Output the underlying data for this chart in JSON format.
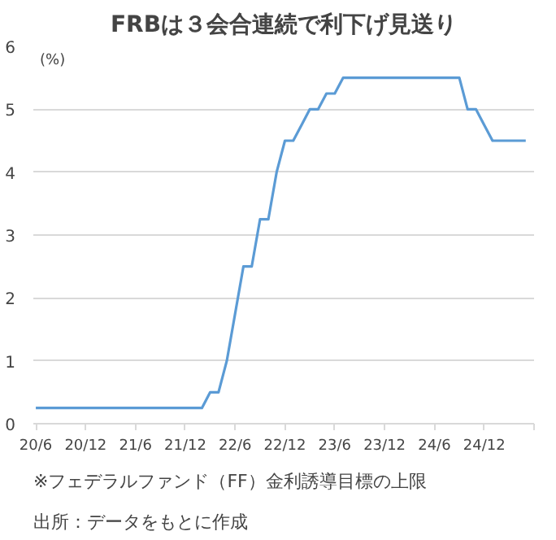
{
  "chart_data": {
    "type": "line",
    "title": "FRBは３会合連続で利下げ見送り",
    "ylabel": "(%)",
    "categories": [
      "20/6",
      null,
      null,
      null,
      null,
      null,
      "20/12",
      null,
      null,
      null,
      null,
      null,
      "21/6",
      null,
      null,
      null,
      null,
      null,
      "21/12",
      null,
      null,
      null,
      null,
      null,
      "22/6",
      null,
      null,
      null,
      null,
      null,
      "22/12",
      null,
      null,
      null,
      null,
      null,
      "23/6",
      null,
      null,
      null,
      null,
      null,
      "23/12",
      null,
      null,
      null,
      null,
      null,
      "24/6",
      null,
      null,
      null,
      null,
      null,
      "24/12",
      null,
      null,
      null,
      null,
      null
    ],
    "series": [
      {
        "color": "#5b9bd5",
        "values": [
          0.25,
          0.25,
          0.25,
          0.25,
          0.25,
          0.25,
          0.25,
          0.25,
          0.25,
          0.25,
          0.25,
          0.25,
          0.25,
          0.25,
          0.25,
          0.25,
          0.25,
          0.25,
          0.25,
          0.25,
          0.25,
          0.5,
          0.5,
          1.0,
          1.75,
          2.5,
          2.5,
          3.25,
          3.25,
          4.0,
          4.5,
          4.5,
          4.75,
          5.0,
          5.0,
          5.25,
          5.25,
          5.5,
          5.5,
          5.5,
          5.5,
          5.5,
          5.5,
          5.5,
          5.5,
          5.5,
          5.5,
          5.5,
          5.5,
          5.5,
          5.5,
          5.5,
          5.0,
          5.0,
          4.75,
          4.5,
          4.5,
          4.5,
          4.5,
          4.5
        ]
      }
    ],
    "ylim": [
      0,
      6
    ],
    "yticks": [
      0,
      1,
      2,
      3,
      4,
      5,
      6
    ],
    "grid": "y",
    "marker": "none",
    "line_style": "solid",
    "annotations": [
      "※フェデラルファンド（FF）金利誘導目標の上限",
      "出所：データをもとに作成"
    ]
  }
}
